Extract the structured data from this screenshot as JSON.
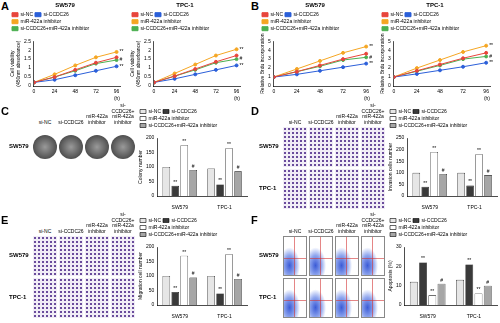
{
  "panels": [
    {
      "label": "A"
    },
    {
      "label": "B"
    },
    {
      "label": "C",
      "images": {
        "rows": [
          "SW579"
        ],
        "columns": [
          "si-NC",
          "si-CCDC26",
          "miR-422a inhibitor",
          "si-CCDC26+ miR-422a inhibitor"
        ]
      }
    },
    {
      "label": "D",
      "images": {
        "rows": [
          "SW579",
          "TPC-1"
        ],
        "columns": [
          "si-NC",
          "si-CCDC26",
          "miR-422a inhibitor",
          "si-CCDC26+ miR-422a inhibitor"
        ]
      }
    },
    {
      "label": "E",
      "images": {
        "rows": [
          "SW579",
          "TPC-1"
        ],
        "columns": [
          "si-NC",
          "si-CCDC26",
          "miR-422a inhibitor",
          "si-CCDC26+ miR-422a inhibitor"
        ]
      }
    },
    {
      "label": "F",
      "images": {
        "rows": [
          "SW579",
          "TPC-1"
        ],
        "columns": [
          "si-NC",
          "si-CCDC26",
          "miR-422a inhibitor",
          "si-CCDC26+ miR-422a inhibitor"
        ]
      }
    }
  ],
  "chart_data": [
    {
      "type": "line",
      "title": "SW579",
      "x": [
        0,
        24,
        48,
        72,
        96
      ],
      "xlim": [
        0,
        100
      ],
      "xticks": [
        0,
        24,
        48,
        72,
        96
      ],
      "x_label": "(h)",
      "y_label": [
        "Cell viability",
        "(450nm absorbance)"
      ],
      "ylim": [
        0,
        2.5
      ],
      "yticks": [
        0,
        0.5,
        1,
        1.5,
        2,
        2.5
      ],
      "grid": false,
      "legend": "top",
      "series": [
        {
          "name": "si-NC",
          "color": "#e8453c",
          "marker": "circle",
          "values": [
            0.2,
            0.5,
            0.9,
            1.3,
            1.6
          ]
        },
        {
          "name": "si-CCDC26",
          "color": "#2b5fd9",
          "marker": "circle",
          "values": [
            0.2,
            0.35,
            0.6,
            0.85,
            1.1
          ],
          "significance": [
            null,
            null,
            null,
            null,
            "**"
          ]
        },
        {
          "name": "miR-422a inhibitor",
          "color": "#f5a623",
          "marker": "circle",
          "values": [
            0.2,
            0.65,
            1.15,
            1.6,
            1.9
          ],
          "significance": [
            null,
            null,
            null,
            null,
            "**"
          ]
        },
        {
          "name": "si-CCDC26+miR-422a inhibitor",
          "color": "#4caf50",
          "marker": "circle",
          "values": [
            0.2,
            0.5,
            0.85,
            1.25,
            1.45
          ],
          "significance": [
            null,
            null,
            null,
            null,
            "#"
          ]
        }
      ]
    },
    {
      "type": "line",
      "title": "TPC-1",
      "x": [
        0,
        24,
        48,
        72,
        96
      ],
      "xlim": [
        0,
        100
      ],
      "xticks": [
        0,
        24,
        48,
        72,
        96
      ],
      "x_label": "(h)",
      "y_label": [
        "Cell viability",
        "(450nm absorbance)"
      ],
      "ylim": [
        0,
        2.5
      ],
      "yticks": [
        0,
        0.5,
        1,
        1.5,
        2,
        2.5
      ],
      "grid": false,
      "legend": "top",
      "series": [
        {
          "name": "si-NC",
          "color": "#e8453c",
          "marker": "circle",
          "values": [
            0.2,
            0.55,
            0.95,
            1.35,
            1.7
          ]
        },
        {
          "name": "si-CCDC26",
          "color": "#2b5fd9",
          "marker": "circle",
          "values": [
            0.2,
            0.4,
            0.65,
            0.9,
            1.15
          ],
          "significance": [
            null,
            null,
            null,
            null,
            "**"
          ]
        },
        {
          "name": "miR-422a inhibitor",
          "color": "#f5a623",
          "marker": "circle",
          "values": [
            0.2,
            0.7,
            1.2,
            1.7,
            2.05
          ],
          "significance": [
            null,
            null,
            null,
            null,
            "**"
          ]
        },
        {
          "name": "si-CCDC26+miR-422a inhibitor",
          "color": "#4caf50",
          "marker": "circle",
          "values": [
            0.2,
            0.55,
            0.9,
            1.3,
            1.5
          ],
          "significance": [
            null,
            null,
            null,
            null,
            "#"
          ]
        }
      ]
    },
    {
      "type": "line",
      "title": "SW579",
      "x": [
        0,
        24,
        48,
        72,
        96
      ],
      "xlim": [
        0,
        100
      ],
      "xticks": [
        0,
        24,
        48,
        72,
        96
      ],
      "x_label": "(h)",
      "y_label": "Relative Brdu incorporation",
      "ylim": [
        0,
        5
      ],
      "yticks": [
        0,
        1,
        2,
        3,
        4,
        5
      ],
      "grid": false,
      "legend": "top",
      "series": [
        {
          "name": "si-NC",
          "color": "#e8453c",
          "marker": "circle",
          "values": [
            1,
            1.6,
            2.3,
            3.0,
            3.6
          ]
        },
        {
          "name": "si-CCDC26",
          "color": "#2b5fd9",
          "marker": "circle",
          "values": [
            1,
            1.3,
            1.7,
            2.1,
            2.5
          ],
          "significance": [
            null,
            null,
            null,
            null,
            "**"
          ]
        },
        {
          "name": "miR-422a inhibitor",
          "color": "#f5a623",
          "marker": "circle",
          "values": [
            1,
            1.9,
            2.8,
            3.7,
            4.4
          ],
          "significance": [
            null,
            null,
            null,
            null,
            "**"
          ]
        },
        {
          "name": "si-CCDC26+miR-422a inhibitor",
          "color": "#4caf50",
          "marker": "circle",
          "values": [
            1,
            1.6,
            2.2,
            2.9,
            3.2
          ],
          "significance": [
            null,
            null,
            null,
            null,
            "#"
          ]
        }
      ]
    },
    {
      "type": "line",
      "title": "TPC-1",
      "x": [
        0,
        24,
        48,
        72,
        96
      ],
      "xlim": [
        0,
        100
      ],
      "xticks": [
        0,
        24,
        48,
        72,
        96
      ],
      "x_label": "(h)",
      "y_label": "Relative Brdu incorporation",
      "ylim": [
        0,
        5
      ],
      "yticks": [
        0,
        1,
        2,
        3,
        4,
        5
      ],
      "grid": false,
      "legend": "top",
      "series": [
        {
          "name": "si-NC",
          "color": "#e8453c",
          "marker": "circle",
          "values": [
            1,
            1.7,
            2.4,
            3.1,
            3.7
          ]
        },
        {
          "name": "si-CCDC26",
          "color": "#2b5fd9",
          "marker": "circle",
          "values": [
            1,
            1.35,
            1.75,
            2.15,
            2.6
          ],
          "significance": [
            null,
            null,
            null,
            null,
            "**"
          ]
        },
        {
          "name": "miR-422a inhibitor",
          "color": "#f5a623",
          "marker": "circle",
          "values": [
            1,
            2.0,
            2.9,
            3.8,
            4.5
          ],
          "significance": [
            null,
            null,
            null,
            null,
            "**"
          ]
        },
        {
          "name": "si-CCDC26+miR-422a inhibitor",
          "color": "#4caf50",
          "marker": "circle",
          "values": [
            1,
            1.65,
            2.3,
            3.0,
            3.3
          ],
          "significance": [
            null,
            null,
            null,
            null,
            "#"
          ]
        }
      ]
    },
    {
      "type": "bar",
      "categories": [
        "SW579",
        "TPC-1"
      ],
      "y_label": "Colony number",
      "ylim": [
        0,
        200
      ],
      "yticks": [
        0,
        50,
        100,
        150,
        200
      ],
      "grid": false,
      "legend": "top",
      "series": [
        {
          "name": "si-NC",
          "color": "#e6e6e6",
          "values": [
            100,
            95
          ]
        },
        {
          "name": "si-CCDC26",
          "color": "#3a3a3a",
          "values": [
            35,
            40
          ],
          "significance": [
            "**",
            "**"
          ]
        },
        {
          "name": "miR-422a inhibitor",
          "color": "#ffffff",
          "values": [
            175,
            165
          ],
          "significance": [
            "**",
            "**"
          ]
        },
        {
          "name": "si-CCDC26+miR-422a inhibitor",
          "color": "#a6a6a6",
          "values": [
            90,
            85
          ],
          "significance": [
            "#",
            "#"
          ]
        }
      ]
    },
    {
      "type": "bar",
      "categories": [
        "SW579",
        "TPC-1"
      ],
      "y_label": "Invasion cells number",
      "ylim": [
        0,
        250
      ],
      "yticks": [
        0,
        50,
        100,
        150,
        200,
        250
      ],
      "grid": false,
      "legend": "top",
      "series": [
        {
          "name": "si-NC",
          "color": "#e6e6e6",
          "values": [
            100,
            100
          ]
        },
        {
          "name": "si-CCDC26",
          "color": "#3a3a3a",
          "values": [
            40,
            45
          ],
          "significance": [
            "**",
            "**"
          ]
        },
        {
          "name": "miR-422a inhibitor",
          "color": "#ffffff",
          "values": [
            190,
            180
          ],
          "significance": [
            "**",
            "**"
          ]
        },
        {
          "name": "si-CCDC26+miR-422a inhibitor",
          "color": "#a6a6a6",
          "values": [
            95,
            90
          ],
          "significance": [
            "#",
            "#"
          ]
        }
      ]
    },
    {
      "type": "bar",
      "categories": [
        "SW579",
        "TPC-1"
      ],
      "y_label": "Migration cell number",
      "ylim": [
        0,
        200
      ],
      "yticks": [
        0,
        50,
        100,
        150,
        200
      ],
      "grid": false,
      "legend": "top",
      "series": [
        {
          "name": "si-NC",
          "color": "#e6e6e6",
          "values": [
            100,
            100
          ]
        },
        {
          "name": "si-CCDC26",
          "color": "#3a3a3a",
          "values": [
            45,
            40
          ],
          "significance": [
            "**",
            "**"
          ]
        },
        {
          "name": "miR-422a inhibitor",
          "color": "#ffffff",
          "values": [
            170,
            175
          ],
          "significance": [
            "**",
            "**"
          ]
        },
        {
          "name": "si-CCDC26+miR-422a inhibitor",
          "color": "#a6a6a6",
          "values": [
            95,
            90
          ],
          "significance": [
            "#",
            "#"
          ]
        }
      ]
    },
    {
      "type": "bar",
      "categories": [
        "SW579",
        "TPC-1"
      ],
      "y_label": "Apoptosis (%)",
      "ylim": [
        0,
        30
      ],
      "yticks": [
        0,
        10,
        20,
        30
      ],
      "grid": false,
      "legend": "top",
      "series": [
        {
          "name": "si-NC",
          "color": "#e6e6e6",
          "values": [
            12,
            13
          ]
        },
        {
          "name": "si-CCDC26",
          "color": "#3a3a3a",
          "values": [
            22,
            21
          ],
          "significance": [
            "**",
            "**"
          ]
        },
        {
          "name": "miR-422a inhibitor",
          "color": "#ffffff",
          "values": [
            5,
            6
          ],
          "significance": [
            "**",
            "**"
          ]
        },
        {
          "name": "si-CCDC26+miR-422a inhibitor",
          "color": "#a6a6a6",
          "values": [
            11,
            10
          ],
          "significance": [
            "#",
            "#"
          ]
        }
      ]
    }
  ]
}
